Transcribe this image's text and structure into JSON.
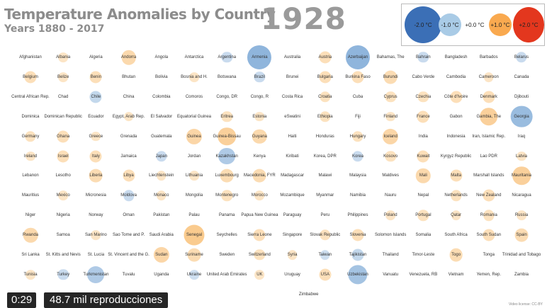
{
  "header": {
    "title": "Temperature Anomalies by Country",
    "subtitle": "Years 1880 - 2017",
    "year": "1928"
  },
  "legend": [
    {
      "label": "-2.0 °C",
      "color": "#3b6fb6"
    },
    {
      "label": "-1.0 °C",
      "color": "#a9cbe6"
    },
    {
      "label": "+0.0 °C",
      "color": "#ffffff"
    },
    {
      "label": "+1.0 °C",
      "color": "#f9a94f"
    },
    {
      "label": "+2.0 °C",
      "color": "#e3371e"
    }
  ],
  "player": {
    "time": "0:29",
    "views": "48.7 mil reproducciones"
  },
  "footer": {
    "license": "Video license: CC-BY"
  },
  "chart_data": {
    "type": "bubble-grid",
    "unit": "°C",
    "rows": [
      [
        [
          "Afghanistan",
          0
        ],
        [
          "Albania",
          0.1
        ],
        [
          "Algeria",
          0
        ],
        [
          "Andorra",
          0.5
        ],
        [
          "Angola",
          0
        ],
        [
          "Antarctica",
          0
        ],
        [
          "Argentina",
          -0.2
        ],
        [
          "Armenia",
          -1.3
        ],
        [
          "Australia",
          0
        ],
        [
          "Austria",
          0.3
        ],
        [
          "Azerbaijan",
          -1.3
        ],
        [
          "Bahamas, The",
          0
        ],
        [
          "Bahrain",
          -0.2
        ],
        [
          "Bangladesh",
          0
        ],
        [
          "Barbados",
          0
        ],
        [
          "Belarus",
          -0.2
        ]
      ],
      [
        [
          "Belgium",
          0.3
        ],
        [
          "Belize",
          0.1
        ],
        [
          "Benin",
          0.3
        ],
        [
          "Bhutan",
          0
        ],
        [
          "Bolivia",
          0
        ],
        [
          "Bosnia and H.",
          0.1
        ],
        [
          "Botswana",
          0
        ],
        [
          "Brazil",
          -0.2
        ],
        [
          "Brunei",
          0
        ],
        [
          "Bulgaria",
          0.3
        ],
        [
          "Burkina Faso",
          0.3
        ],
        [
          "Burundi",
          0.4
        ],
        [
          "Cabo Verde",
          0
        ],
        [
          "Cambodia",
          0
        ],
        [
          "Cameroon",
          0.1
        ],
        [
          "Canada",
          0
        ]
      ],
      [
        [
          "Central African Rep.",
          0
        ],
        [
          "Chad",
          0
        ],
        [
          "Chile",
          -0.3
        ],
        [
          "China",
          0
        ],
        [
          "Colombia",
          0
        ],
        [
          "Comoros",
          0
        ],
        [
          "Congo, DR",
          0
        ],
        [
          "Congo, R",
          0
        ],
        [
          "Costa Rica",
          0
        ],
        [
          "Croatia",
          0.2
        ],
        [
          "Cuba",
          0
        ],
        [
          "Cyprus",
          0.2
        ],
        [
          "Czechia",
          0.2
        ],
        [
          "Côte d'Ivoire",
          0.3
        ],
        [
          "Denmark",
          0.3
        ],
        [
          "Djibouti",
          0
        ]
      ],
      [
        [
          "Dominica",
          0
        ],
        [
          "Dominican Republic",
          0
        ],
        [
          "Ecuador",
          0
        ],
        [
          "Egypt, Arab Rep.",
          0.1
        ],
        [
          "El Salvador",
          0
        ],
        [
          "Equatorial Guinea",
          0
        ],
        [
          "Eritrea",
          0.2
        ],
        [
          "Estonia",
          0.1
        ],
        [
          "eSwatini",
          0
        ],
        [
          "Ethiopia",
          0.2
        ],
        [
          "Fiji",
          0
        ],
        [
          "Finland",
          0.1
        ],
        [
          "France",
          0.3
        ],
        [
          "Gabon",
          0
        ],
        [
          "Gambia, The",
          0.8
        ],
        [
          "Georgia",
          -1.1
        ]
      ],
      [
        [
          "Germany",
          0.2
        ],
        [
          "Ghana",
          0.3
        ],
        [
          "Greece",
          0.1
        ],
        [
          "Grenada",
          0
        ],
        [
          "Guatemala",
          0
        ],
        [
          "Guinea",
          0.6
        ],
        [
          "Guinea-Bissau",
          0.8
        ],
        [
          "Guyana",
          0.5
        ],
        [
          "Haiti",
          0
        ],
        [
          "Honduras",
          0
        ],
        [
          "Hungary",
          0.2
        ],
        [
          "Iceland",
          0.6
        ],
        [
          "India",
          0
        ],
        [
          "Indonesia",
          0
        ],
        [
          "Iran, Islamic Rep.",
          0
        ],
        [
          "Iraq",
          0
        ]
      ],
      [
        [
          "Ireland",
          0.1
        ],
        [
          "Israel",
          0.3
        ],
        [
          "Italy",
          0.3
        ],
        [
          "Jamaica",
          0
        ],
        [
          "Japan",
          -0.2
        ],
        [
          "Jordan",
          0
        ],
        [
          "Kazakhstan",
          -0.7
        ],
        [
          "Kenya",
          0
        ],
        [
          "Kiribati",
          0
        ],
        [
          "Korea, DPR",
          0
        ],
        [
          "Korea",
          -0.2
        ],
        [
          "Kosovo",
          0.2
        ],
        [
          "Kuwait",
          0.3
        ],
        [
          "Kyrgyz Republic",
          0
        ],
        [
          "Lao PDR",
          0
        ],
        [
          "Latvia",
          0.1
        ]
      ],
      [
        [
          "Lebanon",
          0
        ],
        [
          "Lesotho",
          0
        ],
        [
          "Liberia",
          0.4
        ],
        [
          "Libya",
          0.3
        ],
        [
          "Liechtenstein",
          0.1
        ],
        [
          "Lithuania",
          0.1
        ],
        [
          "Luxembourg",
          0.4
        ],
        [
          "Macedonia, FYR",
          0.4
        ],
        [
          "Madagascar",
          0
        ],
        [
          "Malawi",
          0
        ],
        [
          "Malaysia",
          0
        ],
        [
          "Maldives",
          0
        ],
        [
          "Mali",
          0.5
        ],
        [
          "Malta",
          0.3
        ],
        [
          "Marshall Islands",
          0
        ],
        [
          "Mauritania",
          0.8
        ]
      ],
      [
        [
          "Mauritius",
          0
        ],
        [
          "Mexico",
          0.1
        ],
        [
          "Micronesia",
          0
        ],
        [
          "Moldova",
          -0.2
        ],
        [
          "Monaco",
          0.1
        ],
        [
          "Mongolia",
          0
        ],
        [
          "Montenegro",
          0.2
        ],
        [
          "Morocco",
          0.1
        ],
        [
          "Mozambique",
          0
        ],
        [
          "Myanmar",
          0
        ],
        [
          "Namibia",
          0
        ],
        [
          "Nauru",
          0
        ],
        [
          "Nepal",
          0
        ],
        [
          "Netherlands",
          0.2
        ],
        [
          "New Zealand",
          0.3
        ],
        [
          "Nicaragua",
          0
        ]
      ],
      [
        [
          "Niger",
          0
        ],
        [
          "Nigeria",
          0
        ],
        [
          "Norway",
          0
        ],
        [
          "Oman",
          0
        ],
        [
          "Pakistan",
          0
        ],
        [
          "Palau",
          0
        ],
        [
          "Panama",
          0
        ],
        [
          "Papua New Guinea",
          0
        ],
        [
          "Paraguay",
          0
        ],
        [
          "Peru",
          0
        ],
        [
          "Philippines",
          0
        ],
        [
          "Poland",
          0.1
        ],
        [
          "Portugal",
          0.2
        ],
        [
          "Qatar",
          0.1
        ],
        [
          "Romania",
          0.2
        ],
        [
          "Russia",
          0.1
        ]
      ],
      [
        [
          "Rwanda",
          0.5
        ],
        [
          "Samoa",
          0
        ],
        [
          "San Marino",
          0.1
        ],
        [
          "Sao Tome and P.",
          0
        ],
        [
          "Saudi Arabia",
          0
        ],
        [
          "Senegal",
          1.0
        ],
        [
          "Seychelles",
          0
        ],
        [
          "Sierra Leone",
          0.3
        ],
        [
          "Singapore",
          0
        ],
        [
          "Slovak Republic",
          0.2
        ],
        [
          "Slovenia",
          0.3
        ],
        [
          "Solomon Islands",
          0
        ],
        [
          "Somalia",
          0
        ],
        [
          "South Africa",
          0
        ],
        [
          "South Sudan",
          0.3
        ],
        [
          "Spain",
          0.4
        ]
      ],
      [
        [
          "Sri Lanka",
          0
        ],
        [
          "St. Kitts and Nevis",
          0
        ],
        [
          "St. Lucia",
          0
        ],
        [
          "St. Vincent and the G.",
          0
        ],
        [
          "Sudan",
          0.6
        ],
        [
          "Suriname",
          0.4
        ],
        [
          "Sweden",
          0
        ],
        [
          "Switzerland",
          0.2
        ],
        [
          "Syria",
          0.1
        ],
        [
          "Taiwan",
          -0.1
        ],
        [
          "Tajikistan",
          -0.3
        ],
        [
          "Thailand",
          0
        ],
        [
          "Timor-Leste",
          0
        ],
        [
          "Togo",
          0.4
        ],
        [
          "Tonga",
          0
        ],
        [
          "Trinidad and Tobago",
          0
        ]
      ],
      [
        [
          "Tunisia",
          0.1
        ],
        [
          "Turkey",
          -0.2
        ],
        [
          "Turkmenistan",
          -0.7
        ],
        [
          "Tuvalu",
          0
        ],
        [
          "Uganda",
          0
        ],
        [
          "Ukraine",
          -0.1
        ],
        [
          "United Arab Emirates",
          0
        ],
        [
          "UK",
          0.1
        ],
        [
          "Uruguay",
          0
        ],
        [
          "USA",
          0.3
        ],
        [
          "Uzbekistan",
          -0.9
        ],
        [
          "Vanuatu",
          0
        ],
        [
          "Venezuela, RB",
          0
        ],
        [
          "Vietnam",
          0
        ],
        [
          "Yemen, Rep.",
          0
        ],
        [
          "Zambia",
          0
        ]
      ],
      [
        [
          "Zimbabwe",
          0
        ]
      ]
    ]
  }
}
